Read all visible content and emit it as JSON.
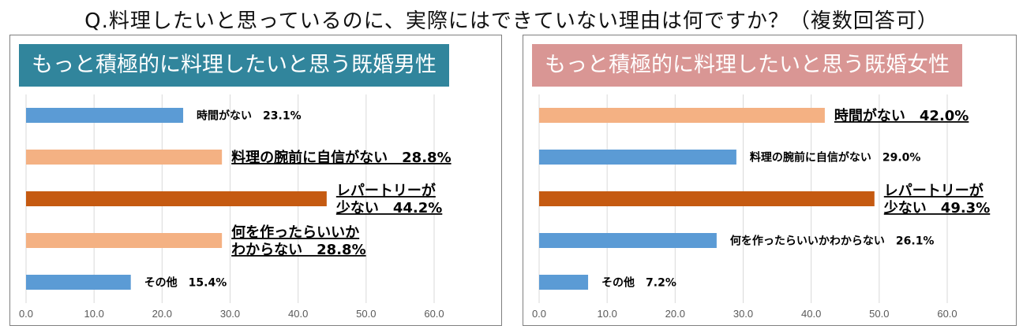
{
  "title": "Q.料理したいと思っているのに、実際にはできていない理由は何ですか？（複数回答可）",
  "colors": {
    "blue": "#5b9bd5",
    "peach": "#f4b183",
    "orange": "#c55a11",
    "header_male": "#31859c",
    "header_female": "#d99694",
    "grid": "#d9d9d9"
  },
  "chart_data": [
    {
      "type": "bar",
      "orientation": "horizontal",
      "title": "もっと積極的に料理したいと思う既婚男性",
      "categories": [
        "時間がない",
        "料理の腕前に自信がない",
        "レパートリーが少ない",
        "何を作ったらいいかわからない",
        "その他"
      ],
      "values": [
        23.1,
        28.8,
        44.2,
        28.8,
        15.4
      ],
      "bar_colors": [
        "blue",
        "peach",
        "orange",
        "peach",
        "blue"
      ],
      "labels": [
        {
          "lines": [
            "時間がない　23.1%"
          ],
          "emphasis": false
        },
        {
          "lines": [
            "料理の腕前に自信がない　28.8%"
          ],
          "emphasis": true
        },
        {
          "lines": [
            "レパートリーが",
            "少ない　44.2%"
          ],
          "emphasis": true
        },
        {
          "lines": [
            "何を作ったらいいか",
            "わからない　28.8%"
          ],
          "emphasis": true
        },
        {
          "lines": [
            "その他　15.4%"
          ],
          "emphasis": false
        }
      ],
      "xlim": [
        0,
        60
      ],
      "xticks": [
        "0.0",
        "10.0",
        "20.0",
        "30.0",
        "40.0",
        "50.0",
        "60.0"
      ],
      "grid": true
    },
    {
      "type": "bar",
      "orientation": "horizontal",
      "title": "もっと積極的に料理したいと思う既婚女性",
      "categories": [
        "時間がない",
        "料理の腕前に自信がない",
        "レパートリーが少ない",
        "何を作ったらいいかわからない",
        "その他"
      ],
      "values": [
        42.0,
        29.0,
        49.3,
        26.1,
        7.2
      ],
      "bar_colors": [
        "peach",
        "blue",
        "orange",
        "blue",
        "blue"
      ],
      "labels": [
        {
          "lines": [
            "時間がない　42.0%"
          ],
          "emphasis": true
        },
        {
          "lines": [
            "料理の腕前に自信がない　29.0%"
          ],
          "emphasis": false
        },
        {
          "lines": [
            "レパートリーが",
            "少ない　49.3%"
          ],
          "emphasis": true
        },
        {
          "lines": [
            "何を作ったらいいかわからない　26.1%"
          ],
          "emphasis": false
        },
        {
          "lines": [
            "その他　7.2%"
          ],
          "emphasis": false
        }
      ],
      "xlim": [
        0,
        60
      ],
      "xticks": [
        "0.0",
        "10.0",
        "20.0",
        "30.0",
        "40.0",
        "50.0",
        "60.0"
      ],
      "grid": true
    }
  ]
}
